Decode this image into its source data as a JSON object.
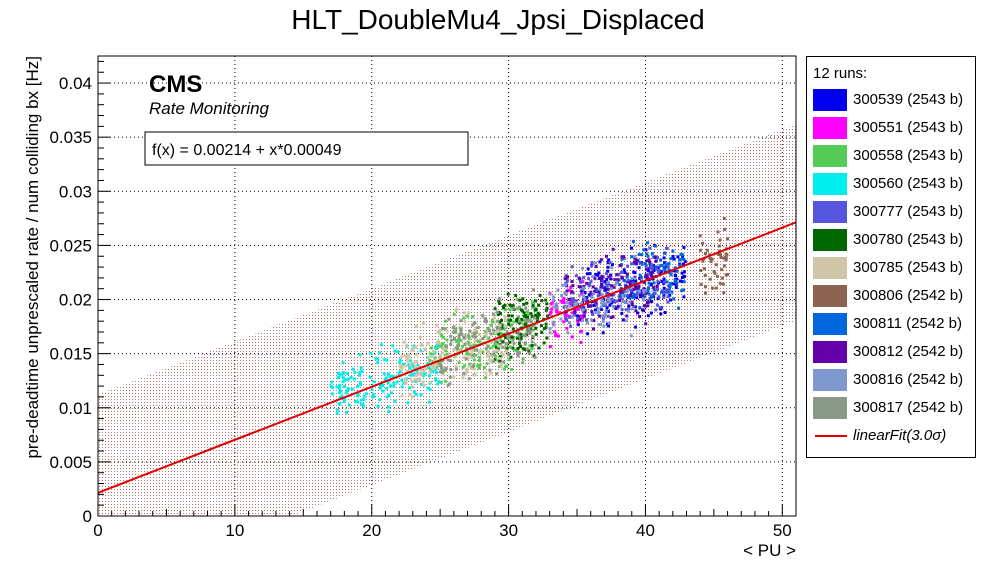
{
  "chart_data": {
    "type": "scatter",
    "title": "HLT_DoubleMu4_Jpsi_Displaced",
    "xlabel": "< PU >",
    "ylabel": "pre-deadtime unprescaled rate / num colliding bx [Hz]",
    "xlim": [
      0,
      51
    ],
    "ylim": [
      0,
      0.0425
    ],
    "x_ticks": [
      "0",
      "10",
      "20",
      "30",
      "40",
      "50"
    ],
    "y_ticks": [
      "0",
      "0.005",
      "0.01",
      "0.015",
      "0.02",
      "0.025",
      "0.03",
      "0.035",
      "0.04"
    ],
    "grid": true,
    "watermark": "CMS",
    "watermark_sub": "Rate Monitoring",
    "fit_label": "f(x) = 0.00214 + x*0.00049",
    "fit": {
      "intercept": 0.00214,
      "slope": 0.00049,
      "sigma_band": 0.00908,
      "color": "#e00000"
    },
    "legend_header": "12 runs:",
    "legend_placement": "right",
    "series": [
      {
        "name": "300539 (2543 b)",
        "color": "#0000ee",
        "x_range": [
          35,
          43
        ],
        "y_center": 0.021,
        "spread": 0.0045,
        "count": 200
      },
      {
        "name": "300551 (2543 b)",
        "color": "#ff00ff",
        "x_range": [
          33,
          35.5
        ],
        "y_center": 0.0185,
        "spread": 0.004,
        "count": 60
      },
      {
        "name": "300558 (2543 b)",
        "color": "#55cc55",
        "x_range": [
          24,
          32
        ],
        "y_center": 0.0165,
        "spread": 0.004,
        "count": 180
      },
      {
        "name": "300560 (2543 b)",
        "color": "#00eeee",
        "x_range": [
          17,
          25
        ],
        "y_center": 0.0125,
        "spread": 0.004,
        "count": 160
      },
      {
        "name": "300777 (2543 b)",
        "color": "#5555dd",
        "x_range": [
          34,
          42
        ],
        "y_center": 0.0205,
        "spread": 0.0045,
        "count": 140
      },
      {
        "name": "300780 (2543 b)",
        "color": "#006600",
        "x_range": [
          29,
          33
        ],
        "y_center": 0.018,
        "spread": 0.0045,
        "count": 120
      },
      {
        "name": "300785 (2543 b)",
        "color": "#cfc6aa",
        "x_range": [
          22,
          30
        ],
        "y_center": 0.0155,
        "spread": 0.0045,
        "count": 180
      },
      {
        "name": "300806 (2542 b)",
        "color": "#8b6350",
        "x_range": [
          44,
          46
        ],
        "y_center": 0.0235,
        "spread": 0.0055,
        "count": 50
      },
      {
        "name": "300811 (2542 b)",
        "color": "#0066dd",
        "x_range": [
          38,
          43
        ],
        "y_center": 0.0225,
        "spread": 0.005,
        "count": 90
      },
      {
        "name": "300812 (2542 b)",
        "color": "#6600aa",
        "x_range": [
          34,
          41
        ],
        "y_center": 0.0215,
        "spread": 0.005,
        "count": 110
      },
      {
        "name": "300816 (2542 b)",
        "color": "#7f99d0",
        "x_range": [
          33,
          40
        ],
        "y_center": 0.0195,
        "spread": 0.0045,
        "count": 90
      },
      {
        "name": "300817 (2542 b)",
        "color": "#889988",
        "x_range": [
          25,
          32
        ],
        "y_center": 0.0165,
        "spread": 0.0045,
        "count": 120
      }
    ],
    "fit_legend": "linearFit(3.0σ)"
  }
}
